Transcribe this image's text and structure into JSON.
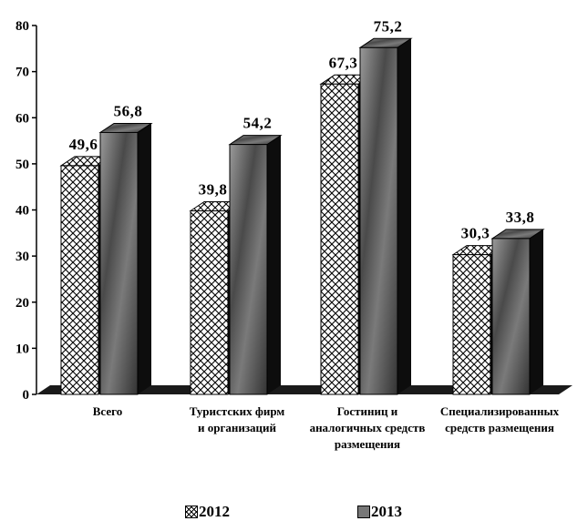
{
  "chart_data": {
    "type": "bar",
    "categories": [
      [
        "Всего"
      ],
      [
        "Туристских фирм",
        "и организаций"
      ],
      [
        "Гостиниц и",
        "аналогичных средств",
        "размещения"
      ],
      [
        "Специализированных",
        "средств размещения"
      ]
    ],
    "series": [
      {
        "name": "2012",
        "values": [
          49.6,
          39.8,
          67.3,
          30.3
        ],
        "labels": [
          "49,6",
          "39,8",
          "67,3",
          "30,3"
        ]
      },
      {
        "name": "2013",
        "values": [
          56.8,
          54.2,
          75.2,
          33.8
        ],
        "labels": [
          "56,8",
          "54,2",
          "75,2",
          "33,8"
        ]
      }
    ],
    "ylim": [
      0,
      80
    ],
    "yticks": [
      0,
      10,
      20,
      30,
      40,
      50,
      60,
      70,
      80
    ],
    "grid": false,
    "legend_position": "bottom",
    "style": "3d-clustered-column",
    "colors": {
      "2012": "#ffffff",
      "2013": "#5a5a5a",
      "side": "#111111",
      "floor": "#1a1a1a"
    }
  },
  "legend": [
    {
      "label": "2012"
    },
    {
      "label": "2013"
    }
  ]
}
